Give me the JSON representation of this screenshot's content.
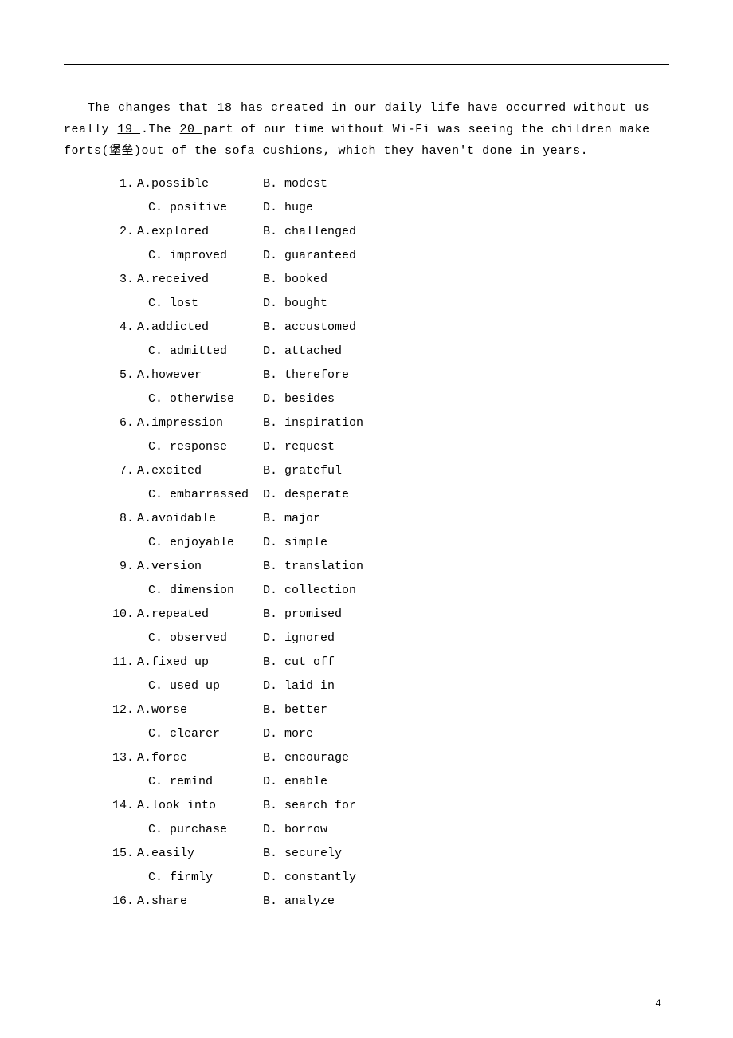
{
  "paragraph": {
    "pre": "The changes that ",
    "b1": "  18  ",
    "mid1": " has created in our daily life have occurred without us really ",
    "b2": "  19  ",
    "mid2": ".The ",
    "b3": "  20  ",
    "post": " part of our time without Wi-Fi was seeing the children make forts(堡垒)out of the sofa cushions, which they haven't done in years."
  },
  "questions": [
    {
      "n": "1.",
      "a": "A.possible",
      "b": "B. modest",
      "c": "C. positive",
      "d": "D. huge"
    },
    {
      "n": "2.",
      "a": "A.explored",
      "b": "B. challenged",
      "c": "C. improved",
      "d": "D. guaranteed"
    },
    {
      "n": "3.",
      "a": "A.received",
      "b": "B. booked",
      "c": "C. lost",
      "d": "D. bought"
    },
    {
      "n": "4.",
      "a": "A.addicted",
      "b": "B. accustomed",
      "c": "C. admitted",
      "d": "D. attached"
    },
    {
      "n": "5.",
      "a": "A.however",
      "b": "B. therefore",
      "c": "C. otherwise",
      "d": "D. besides"
    },
    {
      "n": "6.",
      "a": "A.impression",
      "b": "B. inspiration",
      "c": "C. response",
      "d": "D. request"
    },
    {
      "n": "7.",
      "a": "A.excited",
      "b": "B. grateful",
      "c": "C. embarrassed",
      "d": "D. desperate"
    },
    {
      "n": "8.",
      "a": "A.avoidable",
      "b": "B. major",
      "c": "C. enjoyable",
      "d": "D. simple"
    },
    {
      "n": "9.",
      "a": "A.version",
      "b": "B. translation",
      "c": "C. dimension",
      "d": "D. collection"
    },
    {
      "n": "10.",
      "a": "A.repeated",
      "b": "B. promised",
      "c": "C. observed",
      "d": "D. ignored"
    },
    {
      "n": "11.",
      "a": "A.fixed up",
      "b": "B. cut off",
      "c": "C. used up",
      "d": "D. laid in"
    },
    {
      "n": "12.",
      "a": "A.worse",
      "b": "B. better",
      "c": "C. clearer",
      "d": "D. more"
    },
    {
      "n": "13.",
      "a": "A.force",
      "b": "B. encourage",
      "c": "C. remind",
      "d": "D. enable"
    },
    {
      "n": "14.",
      "a": "A.look into",
      "b": "B. search for",
      "c": "C. purchase",
      "d": "D. borrow"
    },
    {
      "n": "15.",
      "a": "A.easily",
      "b": "B. securely",
      "c": "C. firmly",
      "d": "D. constantly"
    },
    {
      "n": "16.",
      "a": "A.share",
      "b": "B. analyze"
    }
  ],
  "pagenum": "4",
  "colors": {
    "text": "#000000",
    "bg": "#ffffff"
  }
}
